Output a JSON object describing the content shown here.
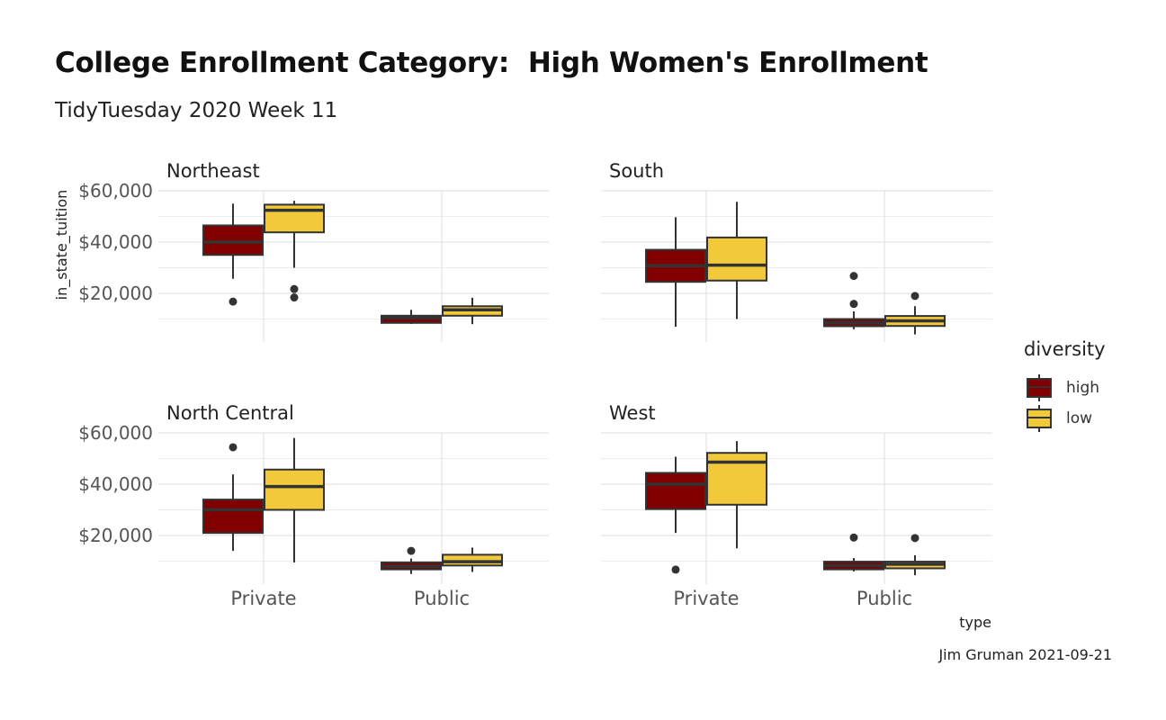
{
  "title": "College Enrollment Category:  High Women's Enrollment",
  "subtitle": "TidyTuesday 2020 Week 11",
  "caption": "Jim Gruman 2021-09-21",
  "colors": {
    "high": "#800000",
    "low": "#F1C93B",
    "grid": "#dddddd",
    "outline": "#333333"
  },
  "chart_data": {
    "type": "boxplot",
    "xlabel": "type",
    "ylabel": "in_state_tuition",
    "categories": [
      "Private",
      "Public"
    ],
    "y_ticks": [
      20000,
      40000,
      60000
    ],
    "y_tick_labels": [
      "$20,000",
      "$40,000",
      "$60,000"
    ],
    "ylim": [
      0,
      60000
    ],
    "grid": true,
    "legend": {
      "title": "diversity",
      "position": "right",
      "entries": [
        "high",
        "low"
      ]
    },
    "panels": [
      {
        "name": "Northeast",
        "boxes": [
          {
            "category": "Private",
            "diversity": "high",
            "min": 25700,
            "q1": 35000,
            "median": 40000,
            "q3": 46500,
            "max": 55000,
            "outliers": [
              16800
            ]
          },
          {
            "category": "Private",
            "diversity": "low",
            "min": 30000,
            "q1": 43800,
            "median": 52400,
            "q3": 54600,
            "max": 56100,
            "outliers": [
              21700,
              18400
            ]
          },
          {
            "category": "Public",
            "diversity": "high",
            "min": 8100,
            "q1": 8500,
            "median": 10400,
            "q3": 11300,
            "max": 13600,
            "outliers": []
          },
          {
            "category": "Public",
            "diversity": "low",
            "min": 8000,
            "q1": 11300,
            "median": 13600,
            "q3": 15000,
            "max": 18300,
            "outliers": []
          }
        ]
      },
      {
        "name": "South",
        "boxes": [
          {
            "category": "Private",
            "diversity": "high",
            "min": 7000,
            "q1": 24500,
            "median": 30800,
            "q3": 37000,
            "max": 49700,
            "outliers": []
          },
          {
            "category": "Private",
            "diversity": "low",
            "min": 10000,
            "q1": 25000,
            "median": 31000,
            "q3": 41800,
            "max": 55700,
            "outliers": []
          },
          {
            "category": "Public",
            "diversity": "high",
            "min": 6000,
            "q1": 7200,
            "median": 8500,
            "q3": 10000,
            "max": 13000,
            "outliers": [
              15900,
              26800
            ]
          },
          {
            "category": "Public",
            "diversity": "low",
            "min": 4000,
            "q1": 7300,
            "median": 9300,
            "q3": 11200,
            "max": 15000,
            "outliers": [
              19000
            ]
          }
        ]
      },
      {
        "name": "North Central",
        "boxes": [
          {
            "category": "Private",
            "diversity": "high",
            "min": 14000,
            "q1": 21000,
            "median": 30000,
            "q3": 34000,
            "max": 43800,
            "outliers": [
              54400
            ]
          },
          {
            "category": "Private",
            "diversity": "low",
            "min": 9500,
            "q1": 30000,
            "median": 39100,
            "q3": 45700,
            "max": 58000,
            "outliers": []
          },
          {
            "category": "Public",
            "diversity": "high",
            "min": 5000,
            "q1": 6800,
            "median": 8000,
            "q3": 9500,
            "max": 11000,
            "outliers": [
              14000
            ]
          },
          {
            "category": "Public",
            "diversity": "low",
            "min": 5800,
            "q1": 8300,
            "median": 9800,
            "q3": 12500,
            "max": 15300,
            "outliers": []
          }
        ]
      },
      {
        "name": "West",
        "boxes": [
          {
            "category": "Private",
            "diversity": "high",
            "min": 21000,
            "q1": 30300,
            "median": 40000,
            "q3": 44400,
            "max": 50700,
            "outliers": [
              6700
            ]
          },
          {
            "category": "Private",
            "diversity": "low",
            "min": 15000,
            "q1": 32000,
            "median": 48600,
            "q3": 52200,
            "max": 56800,
            "outliers": []
          },
          {
            "category": "Public",
            "diversity": "high",
            "min": 6000,
            "q1": 6800,
            "median": 8300,
            "q3": 9800,
            "max": 11200,
            "outliers": [
              19200
            ]
          },
          {
            "category": "Public",
            "diversity": "low",
            "min": 4500,
            "q1": 7200,
            "median": 8800,
            "q3": 9800,
            "max": 12300,
            "outliers": [
              19000
            ]
          }
        ]
      }
    ]
  }
}
